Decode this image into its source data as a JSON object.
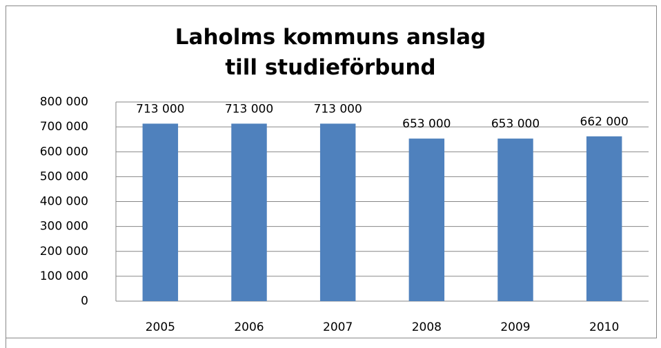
{
  "chart_data": {
    "type": "bar",
    "title": "Laholms kommuns anslag till studieförbund",
    "categories": [
      "2005",
      "2006",
      "2007",
      "2008",
      "2009",
      "2010"
    ],
    "values": [
      713000,
      713000,
      713000,
      653000,
      653000,
      662000
    ],
    "value_labels": [
      "713 000",
      "713 000",
      "713 000",
      "653 000",
      "653 000",
      "662 000"
    ],
    "color": "#4f81bd",
    "ylim": [
      0,
      800000
    ],
    "yticks": [
      0,
      {
        "value": 100000,
        "label": "100 000"
      },
      {
        "value": 200000,
        "label": "200 000"
      },
      {
        "value": 300000,
        "label": "300 000"
      },
      {
        "value": 400000,
        "label": "400 000"
      },
      {
        "value": 500000,
        "label": "500 000"
      },
      {
        "value": 600000,
        "label": "600 000"
      },
      {
        "value": 700000,
        "label": "700 000"
      },
      {
        "value": 800000,
        "label": "800 000"
      }
    ],
    "grid": true
  }
}
